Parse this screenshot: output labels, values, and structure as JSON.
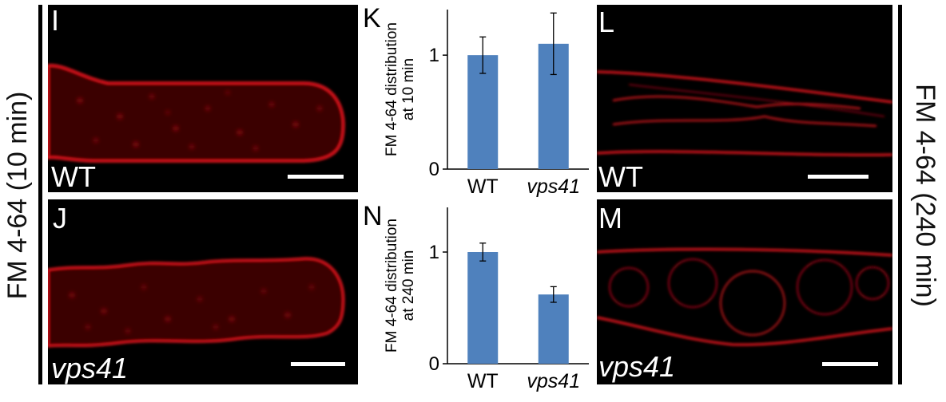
{
  "left_side_label": "FM 4-64 (10 min)",
  "right_side_label": "FM 4-64 (240 min)",
  "panels": {
    "I": {
      "letter": "I",
      "caption": "WT"
    },
    "J": {
      "letter": "J",
      "caption": "vps41"
    },
    "L": {
      "letter": "L",
      "caption": "WT"
    },
    "M": {
      "letter": "M",
      "caption": "vps41"
    }
  },
  "colors": {
    "bar": "#4f81bd",
    "membrane": "#e0141c",
    "panel_bg": "#000000"
  },
  "chart_data": [
    {
      "panel_letter": "K",
      "type": "bar",
      "categories": [
        "WT",
        "vps41"
      ],
      "values": [
        1.0,
        1.1
      ],
      "errors": [
        0.16,
        0.27
      ],
      "ylabel_line1": "FM 4-64 distribution",
      "ylabel_line2": "at 10 min",
      "yticks": [
        0,
        1
      ],
      "ylim": [
        0,
        1.4
      ]
    },
    {
      "panel_letter": "N",
      "type": "bar",
      "categories": [
        "WT",
        "vps41"
      ],
      "values": [
        1.0,
        0.62
      ],
      "errors": [
        0.08,
        0.07
      ],
      "ylabel_line1": "FM 4-64 distribution",
      "ylabel_line2": "at 240 min",
      "yticks": [
        0,
        1
      ],
      "ylim": [
        0,
        1.4
      ]
    }
  ]
}
